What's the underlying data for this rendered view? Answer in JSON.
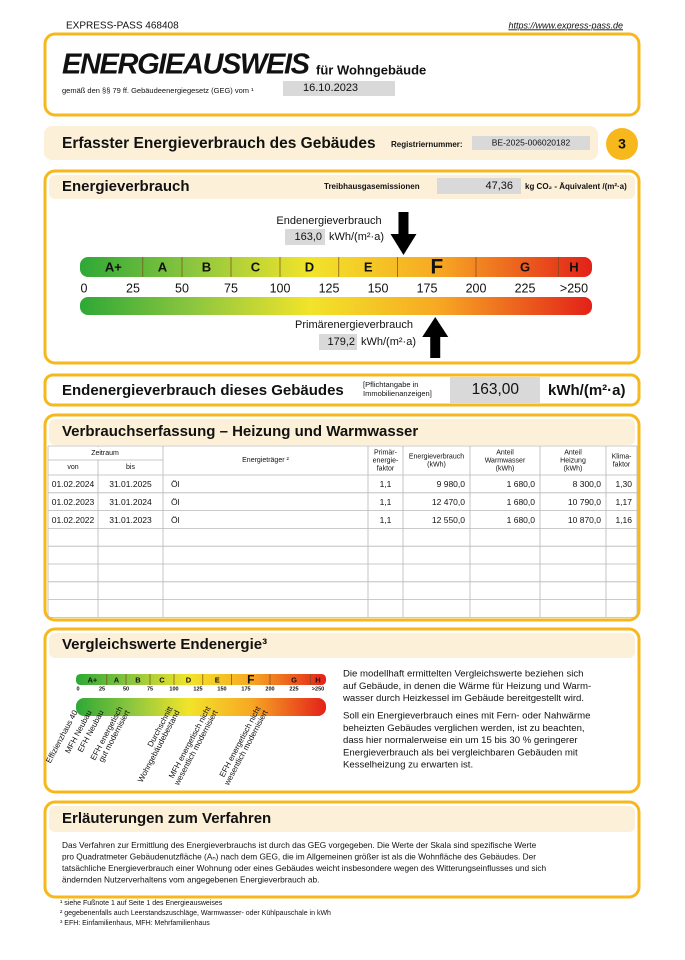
{
  "header": {
    "pass_id": "EXPRESS-PASS 468408",
    "url": "https://www.express-pass.de",
    "title": "ENERGIEAUSWEIS",
    "subtitle": "für Wohngebäude",
    "law": "gemäß den §§ 79 ff. Gebäudeenergiegesetz (GEG) vom ¹",
    "date": "16.10.2023"
  },
  "section": {
    "title": "Erfasster Energieverbrauch des Gebäudes",
    "registration_label": "Registriernummer:",
    "registration": "BE-2025-006020182",
    "page": "3"
  },
  "consumption": {
    "title": "Energieverbrauch",
    "ghg_label": "Treibhausgasemissionen",
    "ghg_value": "47,36",
    "ghg_unit": "kg CO₂ - Äquivalent /(m²·a)",
    "end_label": "Endenergieverbrauch",
    "end_value": "163,0",
    "end_unit": "kWh/(m²·a)",
    "primary_label": "Primärenergieverbrauch",
    "primary_value": "179,2",
    "primary_unit": "kWh/(m²·a)",
    "classes": [
      "A+",
      "A",
      "B",
      "C",
      "D",
      "E",
      "F",
      "G",
      "H"
    ],
    "scale": [
      "0",
      "25",
      "50",
      "75",
      "100",
      "125",
      "150",
      "175",
      "200",
      "225",
      ">250"
    ]
  },
  "building": {
    "label": "Endenergieverbrauch dieses Gebäudes",
    "note": [
      "[Pflichtangabe in",
      "Immobilienanzeigen]"
    ],
    "value": "163,00",
    "unit": "kWh/(m²·a)"
  },
  "table": {
    "title": "Verbrauchserfassung – Heizung und Warmwasser",
    "group": "Zeitraum",
    "headers": [
      [
        "von"
      ],
      [
        "bis"
      ],
      [
        "Energieträger ²"
      ],
      [
        "Primär-",
        "energie-",
        "faktor"
      ],
      [
        "Energieverbrauch",
        "(kWh)"
      ],
      [
        "Anteil",
        "Warmwasser",
        "(kWh)"
      ],
      [
        "Anteil",
        "Heizung",
        "(kWh)"
      ],
      [
        "Klima-",
        "faktor"
      ]
    ],
    "rows": [
      [
        "01.02.2024",
        "31.01.2025",
        "Öl",
        "1,1",
        "9 980,0",
        "1 680,0",
        "8 300,0",
        "1,30"
      ],
      [
        "01.02.2023",
        "31.01.2024",
        "Öl",
        "1,1",
        "12 470,0",
        "1 680,0",
        "10 790,0",
        "1,17"
      ],
      [
        "01.02.2022",
        "31.01.2023",
        "Öl",
        "1,1",
        "12 550,0",
        "1 680,0",
        "10 870,0",
        "1,16"
      ]
    ]
  },
  "comparison": {
    "title": "Vergleichswerte Endenergie³",
    "references": [
      [
        "Effizienzhaus 40"
      ],
      [
        "MFH Neubau"
      ],
      [
        "EFH Neubau"
      ],
      [
        "EFH energetisch",
        "gut modernisiert"
      ],
      [
        "Durchschnitt",
        "Wohngebäudebestand"
      ],
      [
        "MFH energetisch nicht",
        "wesentlich modernisiert"
      ],
      [
        "EFH energetisch nicht",
        "wesentlich modernisiert"
      ]
    ],
    "paragraphs": [
      [
        "Die modellhaft ermittelten Vergleichswerte beziehen sich",
        "auf Gebäude, in denen die Wärme für Heizung und Warm-",
        "wasser durch Heizkessel im Gebäude bereitgestellt wird."
      ],
      [
        "Soll ein Energieverbrauch eines mit Fern- oder Nahwärme",
        "beheizten Gebäudes verglichen werden, ist zu beachten,",
        "dass hier normalerweise ein um 15 bis 30 % geringerer",
        "Energieverbrauch als bei vergleichbaren Gebäuden mit",
        "Kesselheizung zu erwarten ist."
      ]
    ]
  },
  "explanation": {
    "title": "Erläuterungen zum Verfahren",
    "lines": [
      "Das Verfahren zur Ermittlung des Energieverbrauchs ist durch das GEG vorgegeben. Die Werte der Skala sind spezifische Werte",
      "pro Quadratmeter Gebäudenutzfläche (Aₙ) nach dem GEG, die im Allgemeinen größer ist als die Wohnfläche des Gebäudes. Der",
      "tatsächliche Energieverbrauch einer Wohnung oder eines Gebäudes weicht insbesondere wegen des Witterungseinflusses und sich",
      "ändernden Nutzerverhaltens vom angegebenen Energieverbrauch ab."
    ]
  },
  "footnotes": [
    "¹ siehe Fußnote 1 auf Seite 1 des Energieausweises",
    "² gegebenenfalls auch Leerstandszuschläge, Warmwasser- oder Kühlpauschale in kWh",
    "³ EFH: Einfamilienhaus, MFH: Mehrfamilienhaus"
  ]
}
